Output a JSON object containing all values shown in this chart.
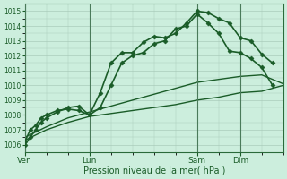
{
  "title": "",
  "xlabel": "Pression niveau de la mer( hPa )",
  "ylabel": "",
  "bg_color": "#cceedd",
  "grid_color": "#aaccbb",
  "line_color": "#1a5c28",
  "ylim": [
    1005.5,
    1015.5
  ],
  "yticks": [
    1006,
    1007,
    1008,
    1009,
    1010,
    1011,
    1012,
    1013,
    1014,
    1015
  ],
  "xtick_labels": [
    "Ven",
    "Lun",
    "Sam",
    "Dim"
  ],
  "xtick_positions": [
    0,
    72,
    192,
    240
  ],
  "total_hours": 288,
  "vline_positions": [
    0,
    72,
    192,
    240
  ],
  "line1": {
    "x": [
      0,
      6,
      12,
      18,
      24,
      36,
      48,
      60,
      72,
      84,
      96,
      108,
      120,
      132,
      144,
      156,
      168,
      180,
      192,
      204,
      216,
      228,
      240,
      252,
      264,
      276
    ],
    "y": [
      1006.0,
      1006.5,
      1007.0,
      1007.5,
      1007.8,
      1008.2,
      1008.5,
      1008.6,
      1008.0,
      1009.5,
      1011.5,
      1012.2,
      1012.2,
      1012.9,
      1013.3,
      1013.2,
      1013.5,
      1014.2,
      1015.0,
      1014.9,
      1014.5,
      1014.2,
      1013.2,
      1013.0,
      1012.1,
      1011.5
    ],
    "marker": "D",
    "markersize": 2.5,
    "linewidth": 1.2
  },
  "line2": {
    "x": [
      0,
      6,
      12,
      18,
      24,
      36,
      48,
      60,
      72,
      84,
      96,
      108,
      120,
      132,
      144,
      156,
      168,
      180,
      192,
      204,
      216,
      228,
      240,
      252,
      264,
      276
    ],
    "y": [
      1006.2,
      1007.0,
      1007.3,
      1007.8,
      1008.0,
      1008.3,
      1008.4,
      1008.3,
      1008.0,
      1008.5,
      1010.0,
      1011.5,
      1012.0,
      1012.2,
      1012.8,
      1013.0,
      1013.8,
      1014.0,
      1014.8,
      1014.2,
      1013.5,
      1012.3,
      1012.2,
      1011.8,
      1011.2,
      1010.0
    ],
    "marker": "D",
    "markersize": 2.5,
    "linewidth": 1.2
  },
  "line3": {
    "x": [
      0,
      24,
      48,
      72,
      96,
      120,
      144,
      168,
      192,
      216,
      240,
      264,
      288
    ],
    "y": [
      1006.5,
      1007.2,
      1007.8,
      1008.2,
      1008.6,
      1009.0,
      1009.4,
      1009.8,
      1010.2,
      1010.4,
      1010.6,
      1010.7,
      1010.1
    ],
    "marker": null,
    "linewidth": 1.0
  },
  "line4": {
    "x": [
      0,
      24,
      48,
      72,
      96,
      120,
      144,
      168,
      192,
      216,
      240,
      264,
      288
    ],
    "y": [
      1006.3,
      1007.0,
      1007.5,
      1007.9,
      1008.1,
      1008.3,
      1008.5,
      1008.7,
      1009.0,
      1009.2,
      1009.5,
      1009.6,
      1010.0
    ],
    "marker": null,
    "linewidth": 1.0
  }
}
